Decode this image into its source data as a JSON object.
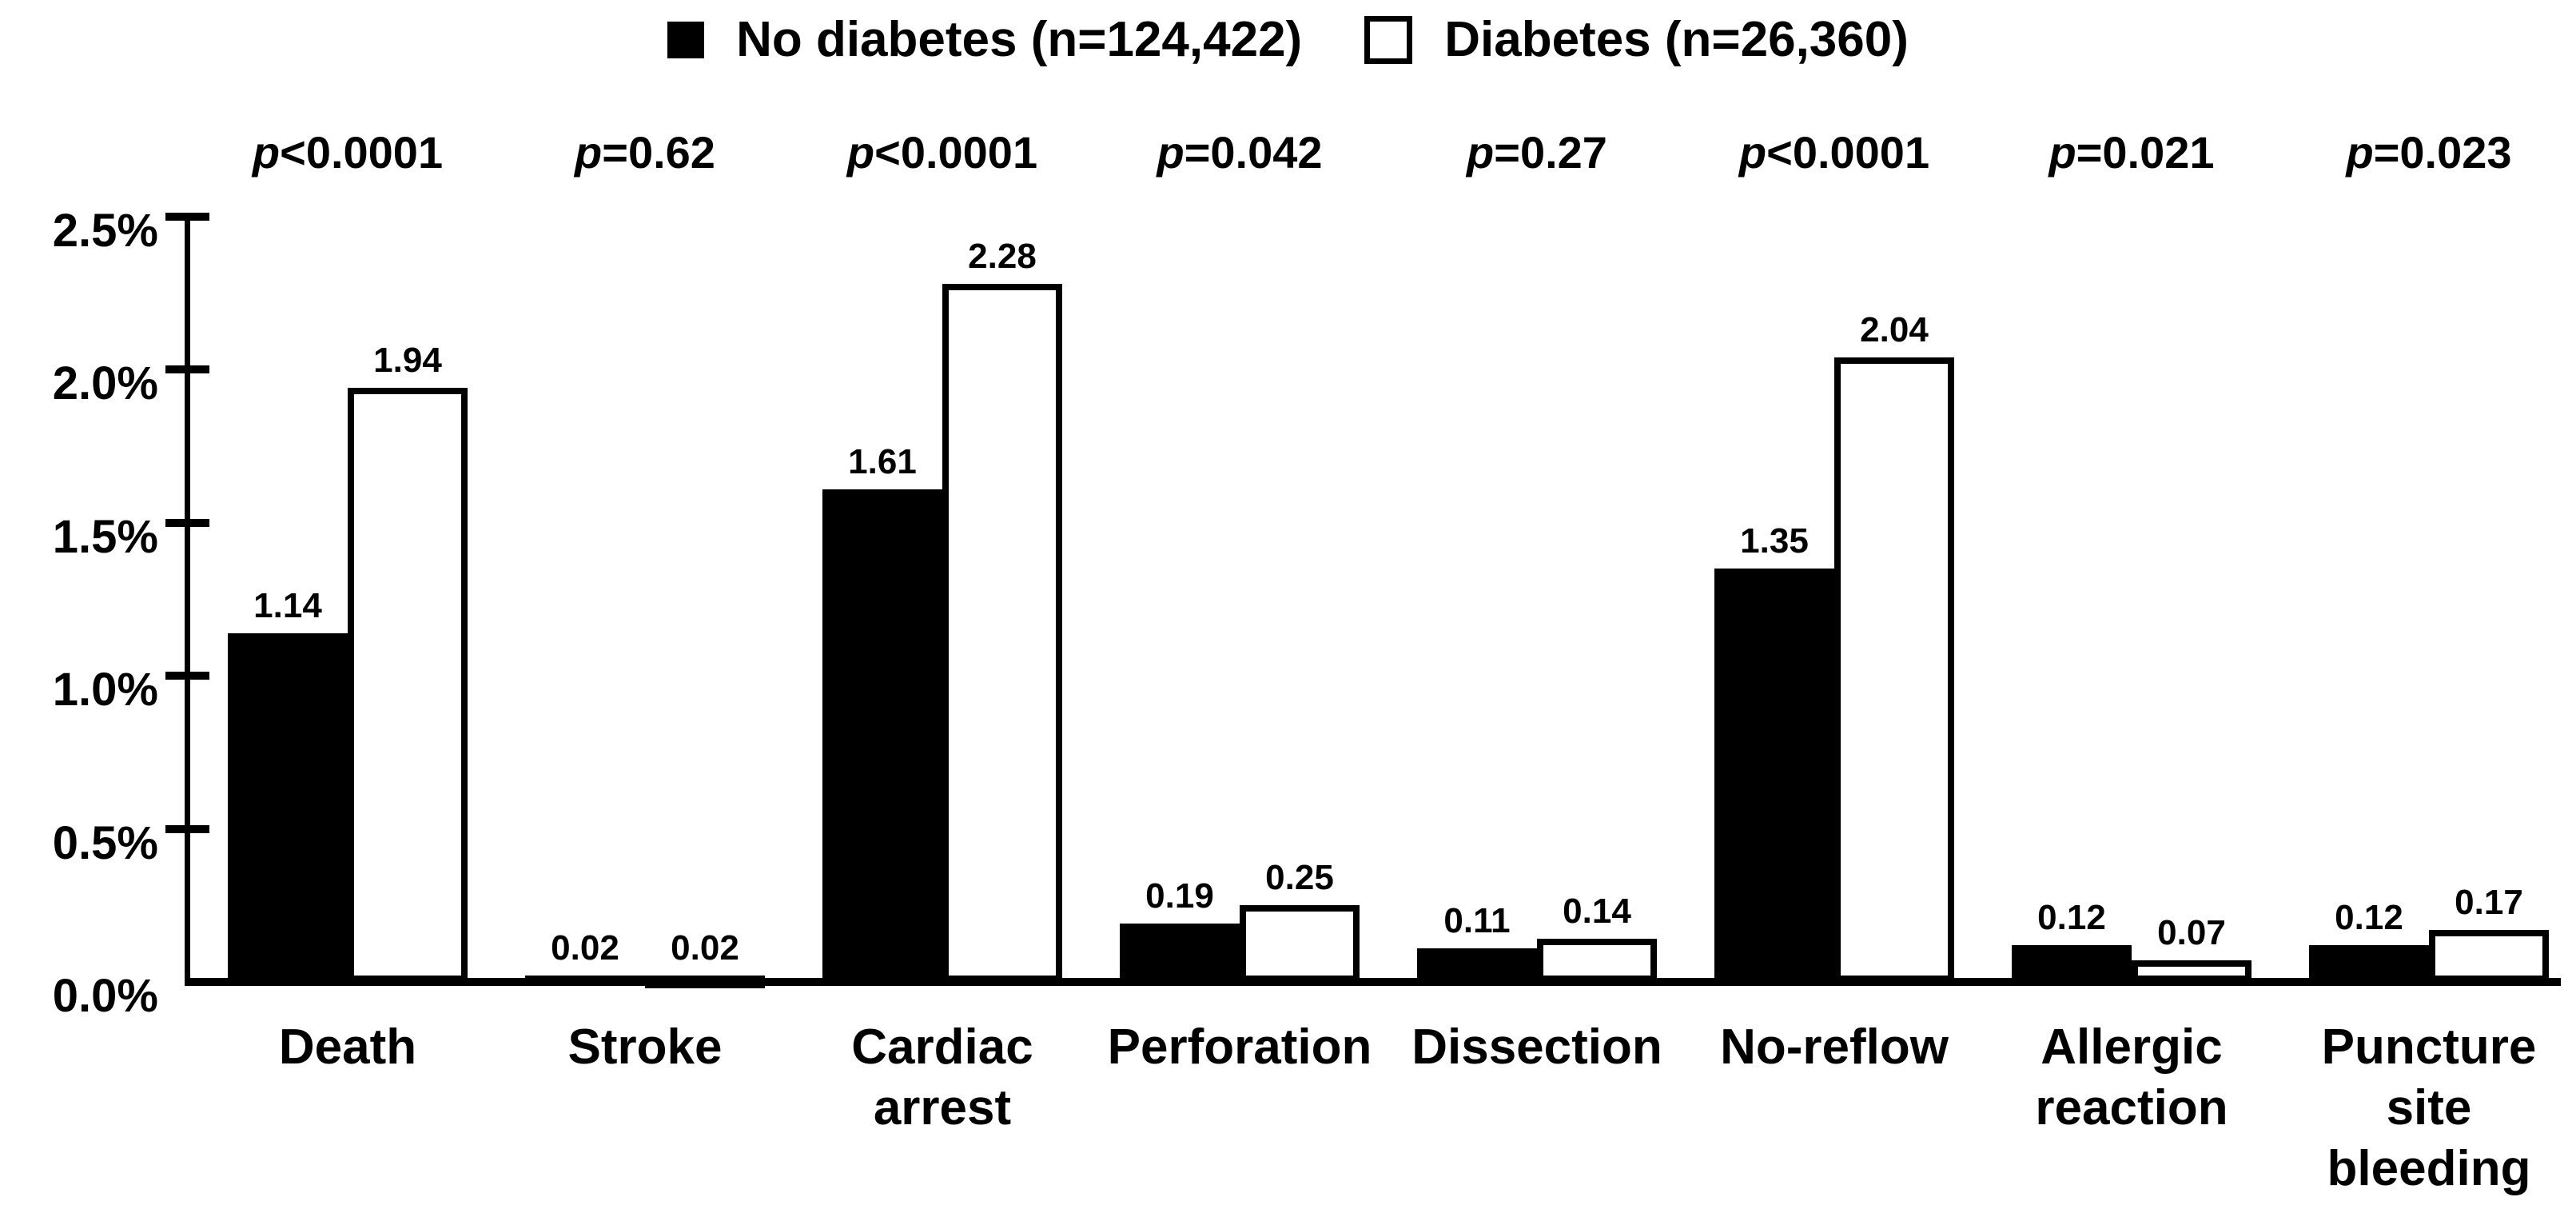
{
  "legend": {
    "items": [
      {
        "label": "No diabetes (n=124,422)",
        "swatch": "filled-square"
      },
      {
        "label": "Diabetes (n=26,360)",
        "swatch": "open-square"
      }
    ]
  },
  "chart_data": {
    "type": "bar",
    "title": "",
    "categories": [
      "Death",
      "Stroke",
      "Cardiac arrest",
      "Perforation",
      "Dissection",
      "No-reflow",
      "Allergic reaction",
      "Puncture site bleeding"
    ],
    "category_display": [
      "Death",
      "Stroke",
      "Cardiac\narrest",
      "Perforation",
      "Dissection",
      "No-reflow",
      "Allergic\nreaction",
      "Puncture\nsite\nbleeding"
    ],
    "p_values": [
      "p<0.0001",
      "p=0.62",
      "p<0.0001",
      "p=0.042",
      "p=0.27",
      "p<0.0001",
      "p=0.021",
      "p=0.023"
    ],
    "series": [
      {
        "name": "No diabetes (n=124,422)",
        "values": [
          1.14,
          0.02,
          1.61,
          0.19,
          0.11,
          1.35,
          0.12,
          0.12
        ],
        "fill": "#000000"
      },
      {
        "name": "Diabetes (n=26,360)",
        "values": [
          1.94,
          0.02,
          2.28,
          0.25,
          0.14,
          2.04,
          0.07,
          0.17
        ],
        "fill": "#ffffff"
      }
    ],
    "xlabel": "",
    "ylabel": "",
    "ylim": [
      0,
      2.5
    ],
    "yticks": [
      0,
      0.5,
      1.0,
      1.5,
      2.0,
      2.5
    ],
    "ytick_labels": [
      "0.0%",
      "0.5%",
      "1.0%",
      "1.5%",
      "2.0%",
      "2.5%"
    ],
    "grid": false,
    "legend_position": "top",
    "value_labels_decimals": 2,
    "colors": {
      "series_no_diabetes_fill": "#000000",
      "series_diabetes_fill": "#ffffff",
      "outline": "#000000",
      "background": "#ffffff",
      "text": "#000000"
    }
  }
}
